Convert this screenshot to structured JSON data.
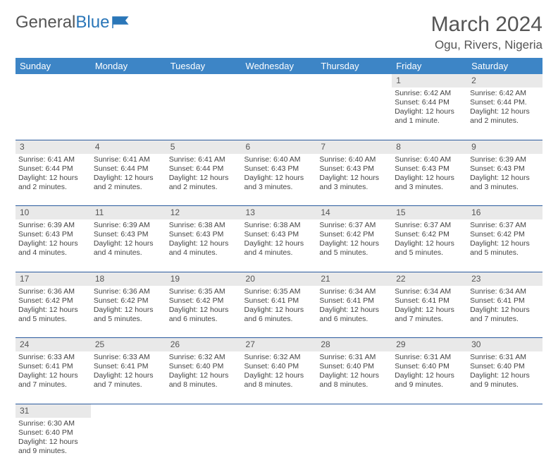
{
  "logo": {
    "word1": "General",
    "word2": "Blue"
  },
  "title": {
    "month": "March 2024",
    "location": "Ogu, Rivers, Nigeria"
  },
  "header_bg": "#3d85c6",
  "daynum_bg": "#e9e9e9",
  "border_color": "#2a5a9e",
  "weekdays": [
    "Sunday",
    "Monday",
    "Tuesday",
    "Wednesday",
    "Thursday",
    "Friday",
    "Saturday"
  ],
  "weeks": [
    {
      "nums": [
        "",
        "",
        "",
        "",
        "",
        "1",
        "2"
      ],
      "cells": [
        null,
        null,
        null,
        null,
        null,
        {
          "sr": "Sunrise: 6:42 AM",
          "ss": "Sunset: 6:44 PM",
          "dl": "Daylight: 12 hours and 1 minute."
        },
        {
          "sr": "Sunrise: 6:42 AM",
          "ss": "Sunset: 6:44 PM.",
          "dl": "Daylight: 12 hours and 2 minutes."
        }
      ]
    },
    {
      "nums": [
        "3",
        "4",
        "5",
        "6",
        "7",
        "8",
        "9"
      ],
      "cells": [
        {
          "sr": "Sunrise: 6:41 AM",
          "ss": "Sunset: 6:44 PM",
          "dl": "Daylight: 12 hours and 2 minutes."
        },
        {
          "sr": "Sunrise: 6:41 AM",
          "ss": "Sunset: 6:44 PM",
          "dl": "Daylight: 12 hours and 2 minutes."
        },
        {
          "sr": "Sunrise: 6:41 AM",
          "ss": "Sunset: 6:44 PM",
          "dl": "Daylight: 12 hours and 2 minutes."
        },
        {
          "sr": "Sunrise: 6:40 AM",
          "ss": "Sunset: 6:43 PM",
          "dl": "Daylight: 12 hours and 3 minutes."
        },
        {
          "sr": "Sunrise: 6:40 AM",
          "ss": "Sunset: 6:43 PM",
          "dl": "Daylight: 12 hours and 3 minutes."
        },
        {
          "sr": "Sunrise: 6:40 AM",
          "ss": "Sunset: 6:43 PM",
          "dl": "Daylight: 12 hours and 3 minutes."
        },
        {
          "sr": "Sunrise: 6:39 AM",
          "ss": "Sunset: 6:43 PM",
          "dl": "Daylight: 12 hours and 3 minutes."
        }
      ]
    },
    {
      "nums": [
        "10",
        "11",
        "12",
        "13",
        "14",
        "15",
        "16"
      ],
      "cells": [
        {
          "sr": "Sunrise: 6:39 AM",
          "ss": "Sunset: 6:43 PM",
          "dl": "Daylight: 12 hours and 4 minutes."
        },
        {
          "sr": "Sunrise: 6:39 AM",
          "ss": "Sunset: 6:43 PM",
          "dl": "Daylight: 12 hours and 4 minutes."
        },
        {
          "sr": "Sunrise: 6:38 AM",
          "ss": "Sunset: 6:43 PM",
          "dl": "Daylight: 12 hours and 4 minutes."
        },
        {
          "sr": "Sunrise: 6:38 AM",
          "ss": "Sunset: 6:43 PM",
          "dl": "Daylight: 12 hours and 4 minutes."
        },
        {
          "sr": "Sunrise: 6:37 AM",
          "ss": "Sunset: 6:42 PM",
          "dl": "Daylight: 12 hours and 5 minutes."
        },
        {
          "sr": "Sunrise: 6:37 AM",
          "ss": "Sunset: 6:42 PM",
          "dl": "Daylight: 12 hours and 5 minutes."
        },
        {
          "sr": "Sunrise: 6:37 AM",
          "ss": "Sunset: 6:42 PM",
          "dl": "Daylight: 12 hours and 5 minutes."
        }
      ]
    },
    {
      "nums": [
        "17",
        "18",
        "19",
        "20",
        "21",
        "22",
        "23"
      ],
      "cells": [
        {
          "sr": "Sunrise: 6:36 AM",
          "ss": "Sunset: 6:42 PM",
          "dl": "Daylight: 12 hours and 5 minutes."
        },
        {
          "sr": "Sunrise: 6:36 AM",
          "ss": "Sunset: 6:42 PM",
          "dl": "Daylight: 12 hours and 5 minutes."
        },
        {
          "sr": "Sunrise: 6:35 AM",
          "ss": "Sunset: 6:42 PM",
          "dl": "Daylight: 12 hours and 6 minutes."
        },
        {
          "sr": "Sunrise: 6:35 AM",
          "ss": "Sunset: 6:41 PM",
          "dl": "Daylight: 12 hours and 6 minutes."
        },
        {
          "sr": "Sunrise: 6:34 AM",
          "ss": "Sunset: 6:41 PM",
          "dl": "Daylight: 12 hours and 6 minutes."
        },
        {
          "sr": "Sunrise: 6:34 AM",
          "ss": "Sunset: 6:41 PM",
          "dl": "Daylight: 12 hours and 7 minutes."
        },
        {
          "sr": "Sunrise: 6:34 AM",
          "ss": "Sunset: 6:41 PM",
          "dl": "Daylight: 12 hours and 7 minutes."
        }
      ]
    },
    {
      "nums": [
        "24",
        "25",
        "26",
        "27",
        "28",
        "29",
        "30"
      ],
      "cells": [
        {
          "sr": "Sunrise: 6:33 AM",
          "ss": "Sunset: 6:41 PM",
          "dl": "Daylight: 12 hours and 7 minutes."
        },
        {
          "sr": "Sunrise: 6:33 AM",
          "ss": "Sunset: 6:41 PM",
          "dl": "Daylight: 12 hours and 7 minutes."
        },
        {
          "sr": "Sunrise: 6:32 AM",
          "ss": "Sunset: 6:40 PM",
          "dl": "Daylight: 12 hours and 8 minutes."
        },
        {
          "sr": "Sunrise: 6:32 AM",
          "ss": "Sunset: 6:40 PM",
          "dl": "Daylight: 12 hours and 8 minutes."
        },
        {
          "sr": "Sunrise: 6:31 AM",
          "ss": "Sunset: 6:40 PM",
          "dl": "Daylight: 12 hours and 8 minutes."
        },
        {
          "sr": "Sunrise: 6:31 AM",
          "ss": "Sunset: 6:40 PM",
          "dl": "Daylight: 12 hours and 9 minutes."
        },
        {
          "sr": "Sunrise: 6:31 AM",
          "ss": "Sunset: 6:40 PM",
          "dl": "Daylight: 12 hours and 9 minutes."
        }
      ]
    },
    {
      "nums": [
        "31",
        "",
        "",
        "",
        "",
        "",
        ""
      ],
      "cells": [
        {
          "sr": "Sunrise: 6:30 AM",
          "ss": "Sunset: 6:40 PM",
          "dl": "Daylight: 12 hours and 9 minutes."
        },
        null,
        null,
        null,
        null,
        null,
        null
      ]
    }
  ]
}
